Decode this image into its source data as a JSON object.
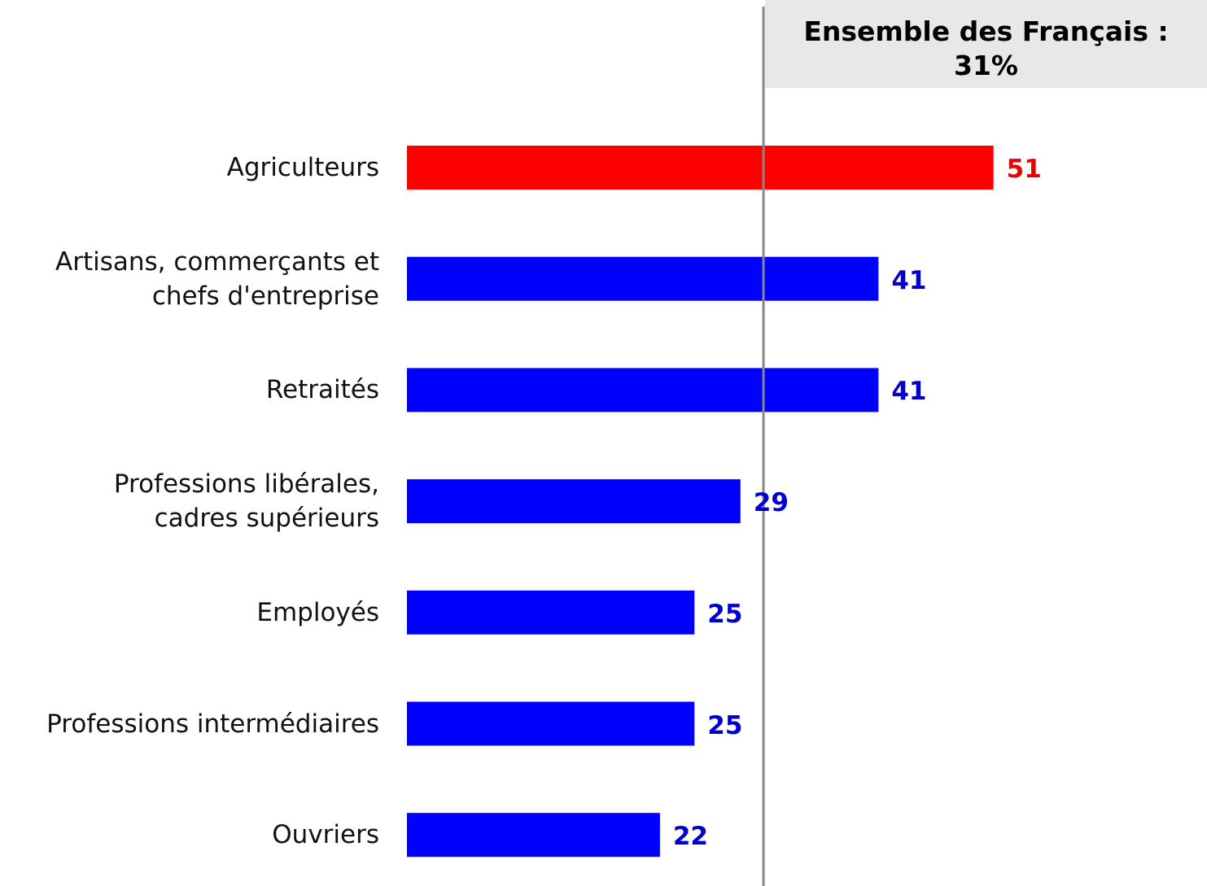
{
  "chart_data": {
    "type": "bar",
    "orientation": "horizontal",
    "categories": [
      "Agriculteurs",
      "Artisans, commerçants et\nchefs d'entreprise",
      "Retraités",
      "Professions libérales,\ncadres supérieurs",
      "Employés",
      "Professions intermédiaires",
      "Ouvriers"
    ],
    "values": [
      51,
      41,
      41,
      29,
      25,
      25,
      22
    ],
    "colors": [
      "#ff0000",
      "#0000ff",
      "#0000ff",
      "#0000ff",
      "#0000ff",
      "#0000ff",
      "#0000ff"
    ],
    "label_colors": [
      "#e60000",
      "#0000cc",
      "#0000cc",
      "#0000cc",
      "#0000cc",
      "#0000cc",
      "#0000cc"
    ],
    "xlim": [
      0,
      69
    ],
    "reference_label": "Ensemble des Français :",
    "reference_value": 31,
    "reference_value_label": "31%"
  }
}
